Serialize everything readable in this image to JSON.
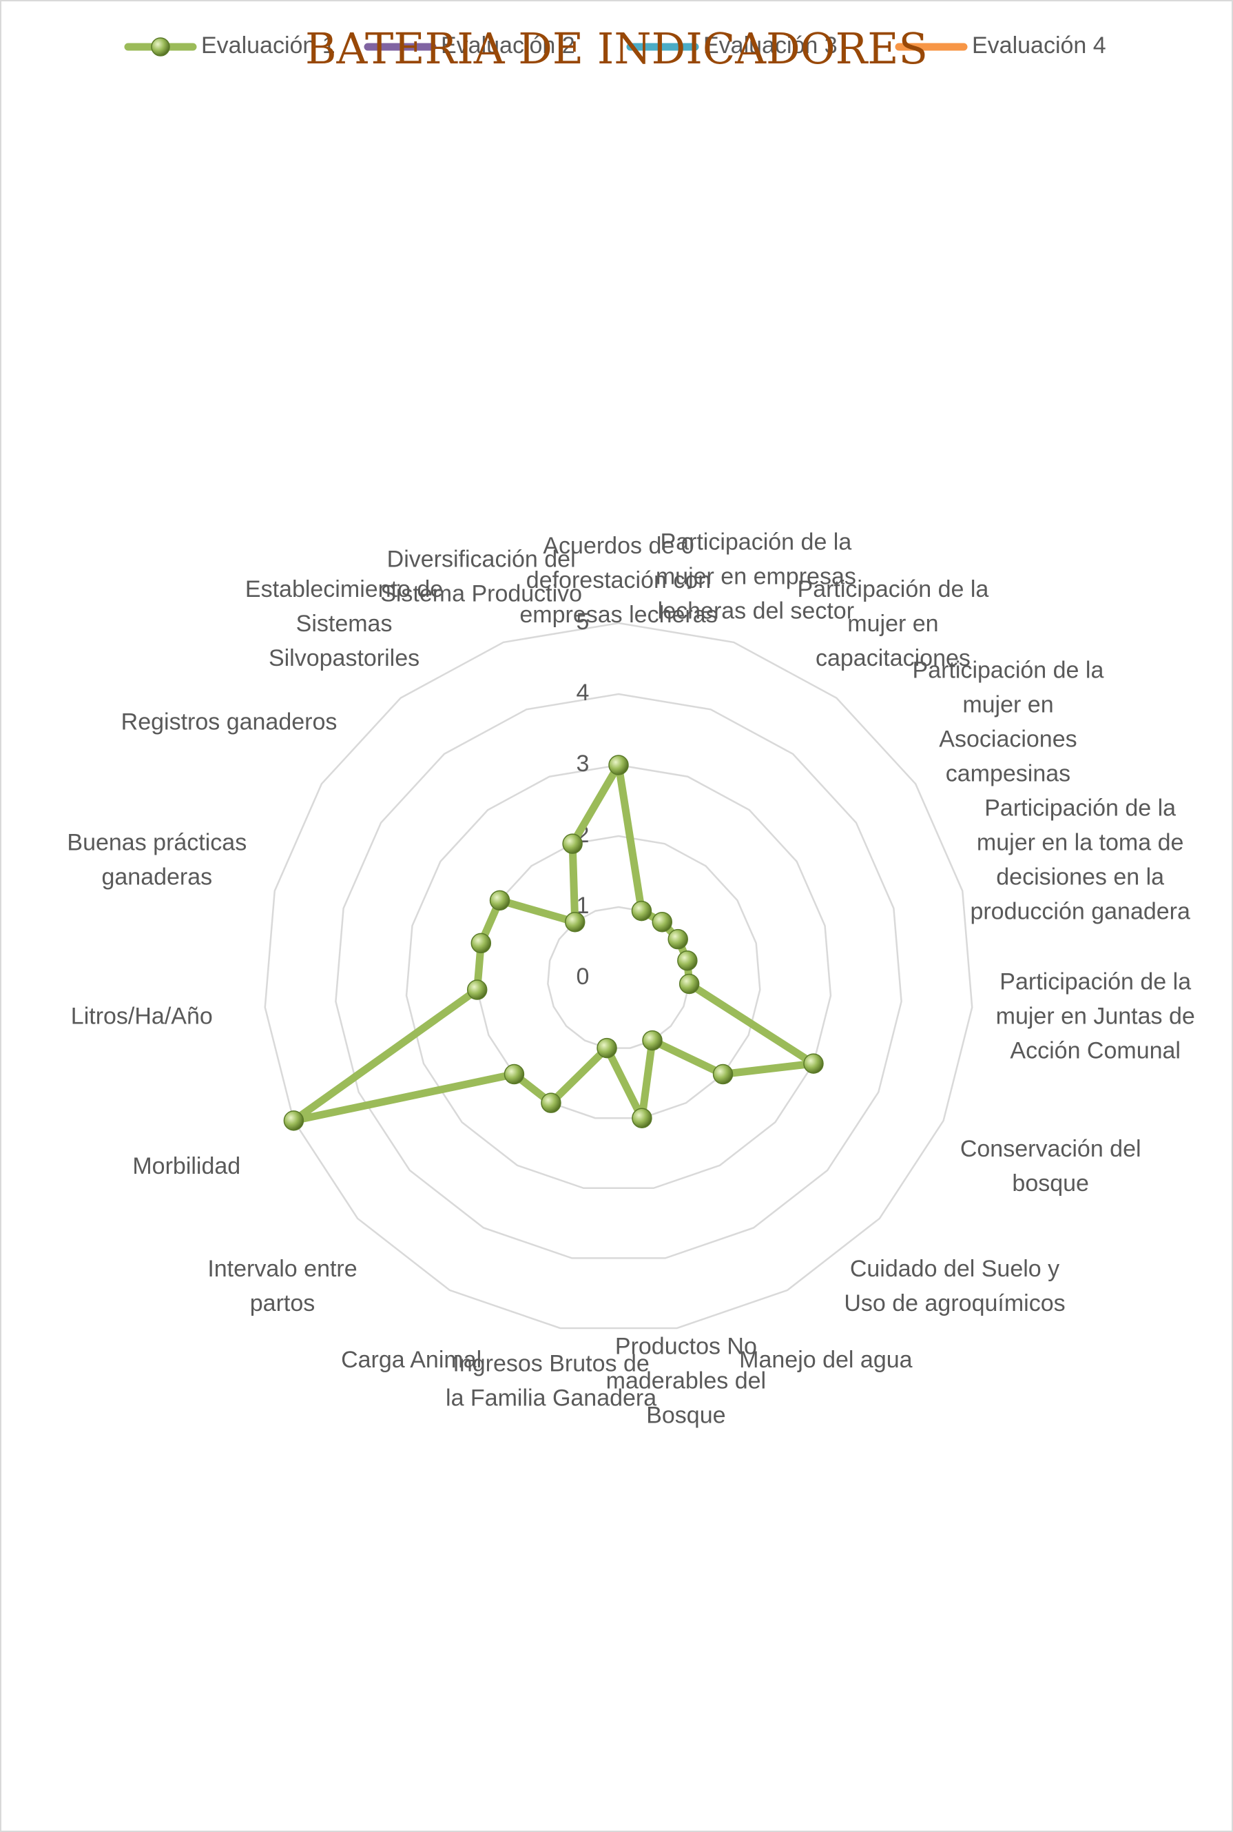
{
  "chart_data": {
    "type": "radar",
    "title": "BATERIA DE INDICADORES",
    "categories": [
      "Acuerdos de 0 deforestación con empresas lecheras",
      "Participación de la mujer en empresas lecheras del sector",
      "Participación de la mujer en capacitaciones",
      "Participación de la mujer en Asociaciones campesinas",
      "Participación de la mujer en la toma de decisiones en la producción ganadera",
      "Participación de la mujer en Juntas de Acción Comunal",
      "Conservación del bosque",
      "Cuidado del Suelo y Uso de agroquímicos",
      "Manejo del agua",
      "Productos No maderables del Bosque",
      "Ingresos Brutos de la Familia Ganadera",
      "Carga Animal",
      "Intervalo entre partos",
      "Morbilidad",
      "Litros/Ha/Año",
      "Buenas prácticas ganaderas",
      "Registros ganaderos",
      "Establecimiento de Sistemas Silvopastoriles",
      "Diversificación del Sistema Productivo"
    ],
    "series": [
      {
        "name": "Evaluación 1",
        "color": "#9bbb59",
        "values": [
          3,
          1,
          1,
          1,
          1,
          1,
          3,
          2,
          1,
          2,
          1,
          2,
          2,
          5,
          2,
          2,
          2,
          1,
          2
        ]
      },
      {
        "name": "Evaluación 2",
        "color": "#8064a2",
        "values": [
          null,
          null,
          null,
          null,
          null,
          null,
          null,
          null,
          null,
          null,
          null,
          null,
          null,
          null,
          null,
          null,
          null,
          null,
          null
        ]
      },
      {
        "name": "Evaluación 3",
        "color": "#4bacc6",
        "values": [
          null,
          null,
          null,
          null,
          null,
          null,
          null,
          null,
          null,
          null,
          null,
          null,
          null,
          null,
          null,
          null,
          null,
          null,
          null
        ]
      },
      {
        "name": "Evaluación 4",
        "color": "#f79646",
        "values": [
          null,
          null,
          null,
          null,
          null,
          null,
          null,
          null,
          null,
          null,
          null,
          null,
          null,
          null,
          null,
          null,
          null,
          null,
          null
        ]
      }
    ],
    "ylim": [
      0,
      5
    ],
    "yticks": [
      0,
      1,
      2,
      3,
      4,
      5
    ],
    "grid": true,
    "legend": "top"
  }
}
